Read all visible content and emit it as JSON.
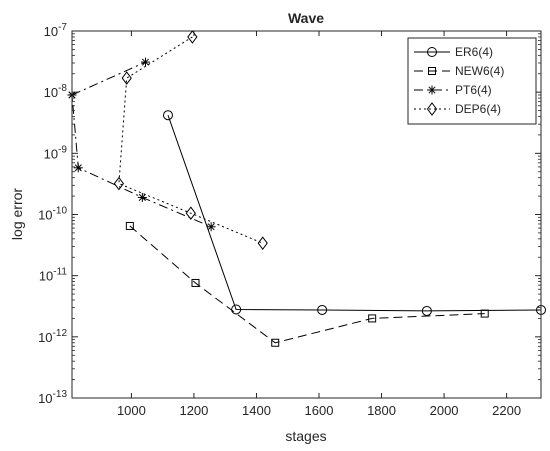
{
  "chart_data": {
    "type": "line",
    "title": "Wave",
    "xlabel": "stages",
    "ylabel": "log error",
    "xlim": [
      810,
      2310
    ],
    "ylim": [
      1e-13,
      1e-07
    ],
    "yscale": "log",
    "x_ticks": [
      1000,
      1200,
      1400,
      1600,
      1800,
      2000,
      2200
    ],
    "y_ticks": [
      {
        "value": 1e-13,
        "base": "10",
        "exp": "-13"
      },
      {
        "value": 1e-12,
        "base": "10",
        "exp": "-12"
      },
      {
        "value": 1e-11,
        "base": "10",
        "exp": "-11"
      },
      {
        "value": 1e-10,
        "base": "10",
        "exp": "-10"
      },
      {
        "value": 1e-09,
        "base": "10",
        "exp": "-9"
      },
      {
        "value": 1e-08,
        "base": "10",
        "exp": "-8"
      },
      {
        "value": 1e-07,
        "base": "10",
        "exp": "-7"
      }
    ],
    "grid": false,
    "legend_position": "top-right",
    "series": [
      {
        "name": "ER6(4)",
        "marker": "circle",
        "dash": "solid",
        "color": "#000000",
        "points": [
          [
            1117,
            4.2e-09
          ],
          [
            1335,
            2.8e-12
          ],
          [
            1610,
            2.75e-12
          ],
          [
            1945,
            2.65e-12
          ],
          [
            2310,
            2.75e-12
          ]
        ]
      },
      {
        "name": "NEW6(4)",
        "marker": "square",
        "dash": "dashed",
        "color": "#000000",
        "points": [
          [
            995,
            6.5e-11
          ],
          [
            1205,
            7.6e-12
          ],
          [
            1460,
            8e-13
          ],
          [
            1770,
            2e-12
          ],
          [
            2130,
            2.4e-12
          ]
        ]
      },
      {
        "name": "PT6(4)",
        "marker": "asterisk",
        "dash": "dashdot",
        "color": "#000000",
        "points": [
          [
            810,
            9e-09
          ],
          [
            1045,
            3.1e-08
          ],
          [
            810,
            9e-09
          ],
          [
            830,
            5.8e-10
          ],
          [
            1035,
            1.9e-10
          ],
          [
            1255,
            6.3e-11
          ]
        ]
      },
      {
        "name": "DEP6(4)",
        "marker": "diamond",
        "dash": "dotted",
        "color": "#000000",
        "points": [
          [
            1195,
            8e-08
          ],
          [
            985,
            1.7e-08
          ],
          [
            960,
            3.2e-10
          ],
          [
            1190,
            1.05e-10
          ],
          [
            1420,
            3.4e-11
          ]
        ]
      }
    ]
  }
}
